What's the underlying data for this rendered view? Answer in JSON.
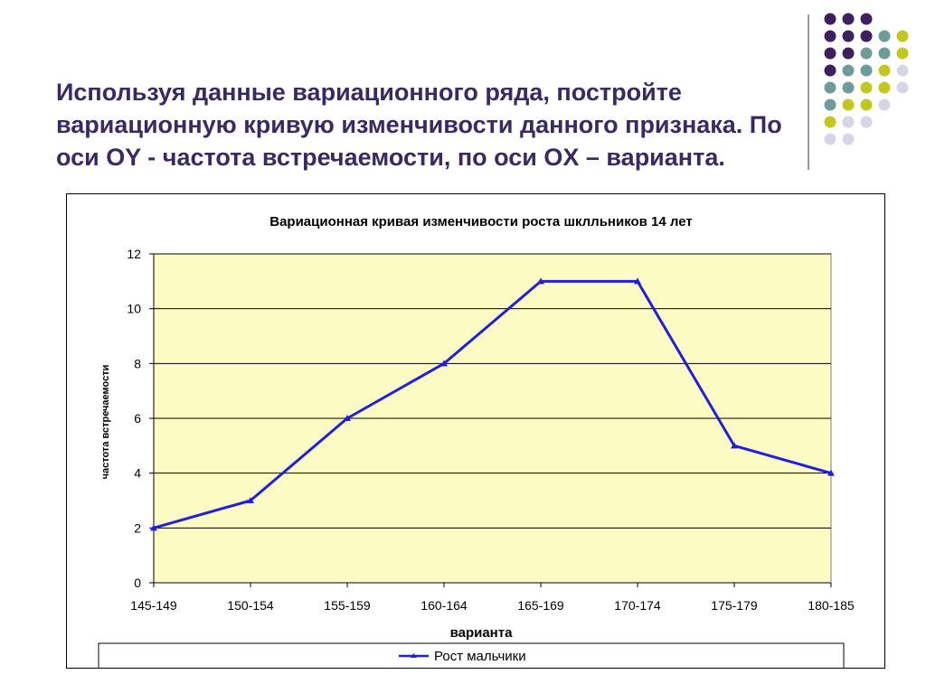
{
  "slide": {
    "title": "Используя данные вариационного ряда, постройте вариационную кривую изменчивости данного признака. По оси OY - частота встречаемости, по оси OX – варианта."
  },
  "decoration": {
    "dot_colors": [
      "#3e1f5f",
      "#6e9c9a",
      "#c3c81f",
      "#d7d6e6"
    ]
  },
  "chart_data": {
    "type": "line",
    "title": "Вариационная кривая изменчивости роста шклльников 14 лет",
    "xlabel": "варианта",
    "ylabel": "частота встречаемости",
    "categories": [
      "145-149",
      "150-154",
      "155-159",
      "160-164",
      "165-169",
      "170-174",
      "175-179",
      "180-185"
    ],
    "series": [
      {
        "name": "Рост мальчики",
        "values": [
          2,
          3,
          6,
          8,
          11,
          11,
          5,
          4
        ],
        "color": "#1f1fe0"
      }
    ],
    "ylim": [
      0,
      12
    ],
    "yticks": [
      0,
      2,
      4,
      6,
      8,
      10,
      12
    ],
    "grid": true,
    "plot_background": "#fdfbc4",
    "legend_position": "bottom"
  }
}
